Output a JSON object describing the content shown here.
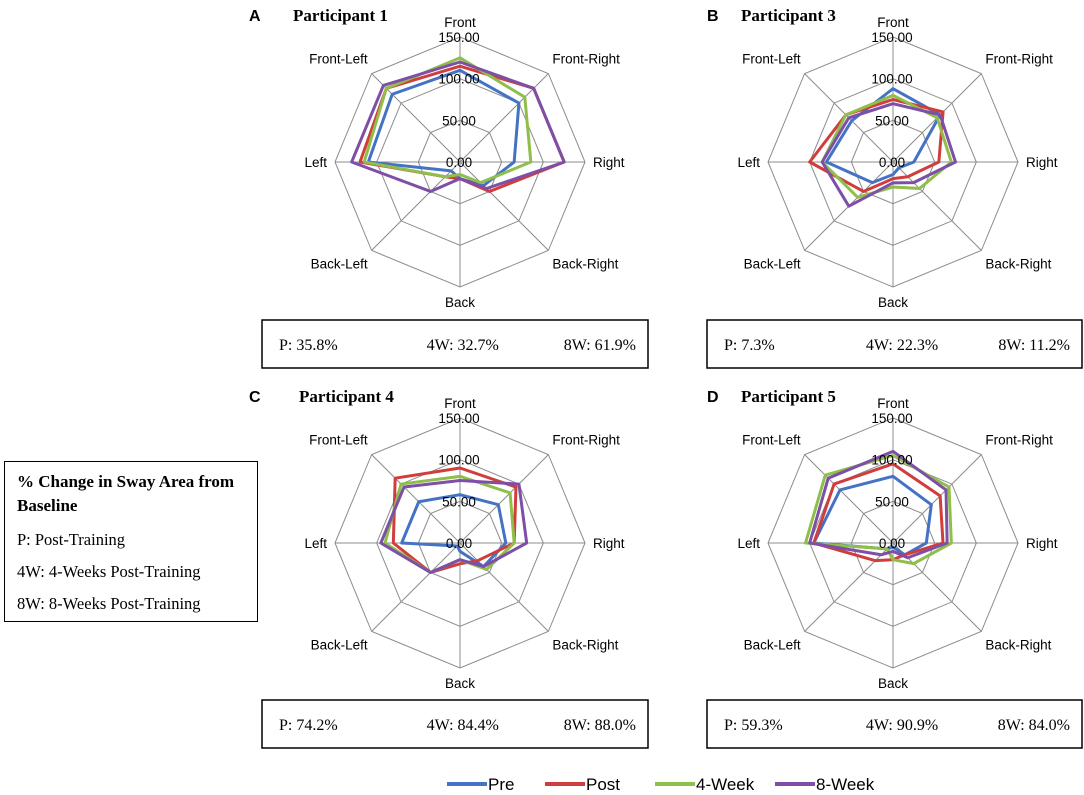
{
  "chart_data": [
    {
      "type": "radar",
      "panel": "A",
      "title": "Participant 1",
      "axes": [
        "Front",
        "Front-Right",
        "Right",
        "Back-Right",
        "Back",
        "Back-Left",
        "Left",
        "Front-Left"
      ],
      "rlim": [
        0,
        150
      ],
      "ticks": [
        "0.00",
        "50.00",
        "100.00",
        "150.00"
      ],
      "series": [
        {
          "name": "Pre",
          "values": [
            110,
            100,
            65,
            40,
            20,
            15,
            110,
            115
          ]
        },
        {
          "name": "Post",
          "values": [
            115,
            125,
            125,
            50,
            20,
            25,
            120,
            125
          ]
        },
        {
          "name": "4-Week",
          "values": [
            125,
            110,
            85,
            35,
            15,
            25,
            115,
            125
          ]
        },
        {
          "name": "8-Week",
          "values": [
            120,
            125,
            125,
            45,
            20,
            50,
            130,
            130
          ]
        }
      ],
      "summary": {
        "p": "P: 35.8%",
        "w4": "4W: 32.7%",
        "w8": "8W: 61.9%"
      }
    },
    {
      "type": "radar",
      "panel": "B",
      "title": "Participant 3",
      "axes": [
        "Front",
        "Front-Right",
        "Right",
        "Back-Right",
        "Back",
        "Back-Left",
        "Left",
        "Front-Left"
      ],
      "rlim": [
        0,
        150
      ],
      "ticks": [
        "0.00",
        "50.00",
        "100.00",
        "150.00"
      ],
      "series": [
        {
          "name": "Pre",
          "values": [
            88,
            80,
            25,
            10,
            15,
            35,
            80,
            70
          ]
        },
        {
          "name": "Post",
          "values": [
            75,
            85,
            55,
            25,
            20,
            50,
            100,
            80
          ]
        },
        {
          "name": "4-Week",
          "values": [
            80,
            75,
            70,
            45,
            30,
            60,
            85,
            80
          ]
        },
        {
          "name": "8-Week",
          "values": [
            70,
            80,
            75,
            35,
            25,
            75,
            85,
            75
          ]
        }
      ],
      "summary": {
        "p": "P: 7.3%",
        "w4": "4W: 22.3%",
        "w8": "8W: 11.2%"
      }
    },
    {
      "type": "radar",
      "panel": "C",
      "title": "Participant 4",
      "axes": [
        "Front",
        "Front-Right",
        "Right",
        "Back-Right",
        "Back",
        "Back-Left",
        "Left",
        "Front-Left"
      ],
      "rlim": [
        0,
        150
      ],
      "ticks": [
        "0.00",
        "50.00",
        "100.00",
        "150.00"
      ],
      "series": [
        {
          "name": "Pre",
          "values": [
            58,
            65,
            55,
            40,
            10,
            5,
            70,
            70
          ]
        },
        {
          "name": "Post",
          "values": [
            90,
            95,
            65,
            30,
            25,
            50,
            80,
            110
          ]
        },
        {
          "name": "4-Week",
          "values": [
            80,
            85,
            65,
            45,
            20,
            50,
            90,
            100
          ]
        },
        {
          "name": "8-Week",
          "values": [
            75,
            100,
            80,
            40,
            20,
            50,
            95,
            95
          ]
        }
      ],
      "summary": {
        "p": "P: 74.2%",
        "w4": "4W: 84.4%",
        "w8": "8W: 88.0%"
      }
    },
    {
      "type": "radar",
      "panel": "D",
      "title": "Participant 5",
      "axes": [
        "Front",
        "Front-Right",
        "Right",
        "Back-Right",
        "Back",
        "Back-Left",
        "Left",
        "Front-Left"
      ],
      "rlim": [
        0,
        150
      ],
      "ticks": [
        "0.00",
        "50.00",
        "100.00",
        "150.00"
      ],
      "series": [
        {
          "name": "Pre",
          "values": [
            80,
            65,
            40,
            20,
            5,
            10,
            95,
            90
          ]
        },
        {
          "name": "Post",
          "values": [
            95,
            80,
            60,
            20,
            20,
            30,
            95,
            100
          ]
        },
        {
          "name": "4-Week",
          "values": [
            105,
            95,
            70,
            35,
            20,
            10,
            105,
            115
          ]
        },
        {
          "name": "8-Week",
          "values": [
            110,
            90,
            65,
            25,
            10,
            20,
            100,
            110
          ]
        }
      ],
      "summary": {
        "p": "P: 59.3%",
        "w4": "4W: 90.9%",
        "w8": "8W: 84.0%"
      }
    }
  ],
  "info_box": {
    "title": "% Change in Sway Area from Baseline",
    "lines": [
      "P: Post-Training",
      "4W: 4-Weeks Post-Training",
      "8W: 8-Weeks Post-Training"
    ]
  },
  "legend": [
    {
      "name": "Pre",
      "color": "#4472c4"
    },
    {
      "name": "Post",
      "color": "#d03d3d"
    },
    {
      "name": "4-Week",
      "color": "#8fbf4a"
    },
    {
      "name": "8-Week",
      "color": "#7e4fa6"
    }
  ]
}
